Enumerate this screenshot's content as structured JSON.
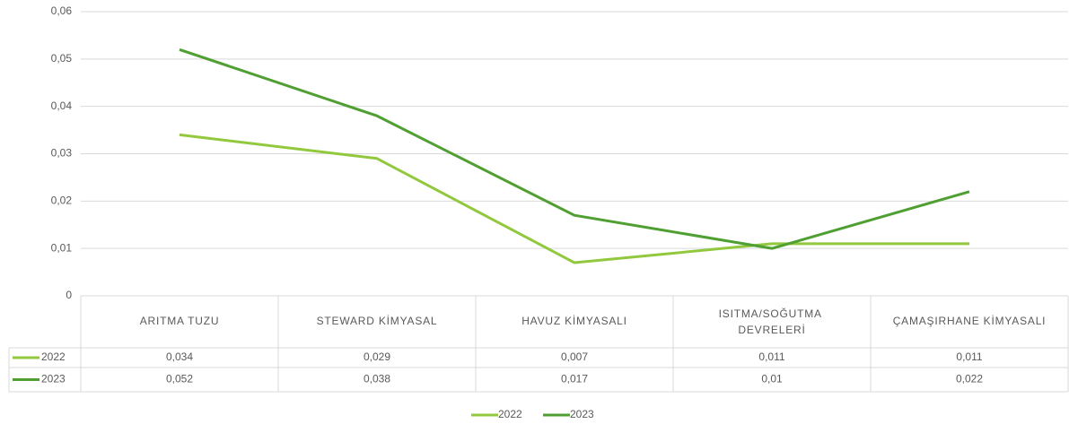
{
  "chart_data": {
    "type": "line",
    "categories": [
      "ARITMA TUZU",
      "STEWARD KİMYASAL",
      "HAVUZ KİMYASALI",
      "ISITMA/SOĞUTMA DEVRELERİ",
      "ÇAMAŞIRHANE KİMYASALI"
    ],
    "series": [
      {
        "name": "2022",
        "color": "#92c83e",
        "values": [
          0.034,
          0.029,
          0.007,
          0.011,
          0.011
        ],
        "value_labels": [
          "0,034",
          "0,029",
          "0,007",
          "0,011",
          "0,011"
        ]
      },
      {
        "name": "2023",
        "color": "#4f9f32",
        "values": [
          0.052,
          0.038,
          0.017,
          0.01,
          0.022
        ],
        "value_labels": [
          "0,052",
          "0,038",
          "0,017",
          "0,01",
          "0,022"
        ]
      }
    ],
    "ylim": [
      0,
      0.06
    ],
    "yticks": [
      0,
      {
        "value": 0.01,
        "label": "0,01"
      },
      {
        "value": 0.02,
        "label": "0,02"
      },
      {
        "value": 0.03,
        "label": "0,03"
      },
      {
        "value": 0.04,
        "label": "0,04"
      },
      {
        "value": 0.05,
        "label": "0,05"
      },
      {
        "value": 0.06,
        "label": "0,06"
      }
    ],
    "grid": true,
    "legend": "bottom",
    "data_table": true
  }
}
